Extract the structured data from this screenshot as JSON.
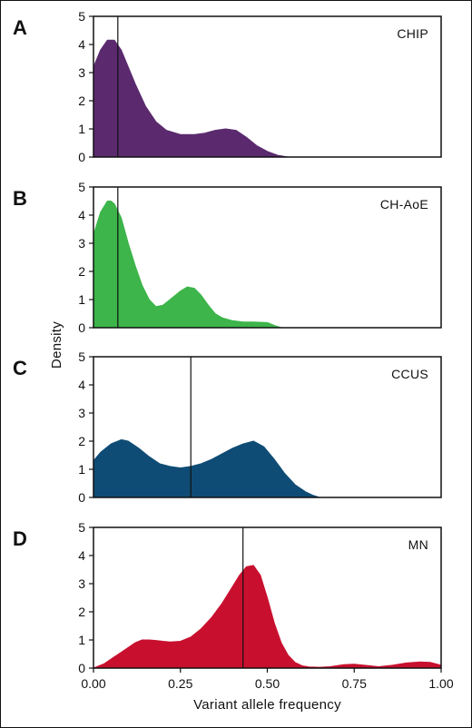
{
  "chart_data": {
    "type": "area",
    "xlabel": "Variant allele frequency",
    "ylabel": "Density",
    "xlim": [
      0,
      1
    ],
    "ylim": [
      0,
      5
    ],
    "x_ticks": [
      "0.00",
      "0.25",
      "0.50",
      "0.75",
      "1.00"
    ],
    "y_ticks": [
      "0",
      "1",
      "2",
      "3",
      "4",
      "5"
    ],
    "grid": false,
    "panels": [
      {
        "letter": "A",
        "label": "CHIP",
        "color": "#5b2a6e",
        "median_vaf": 0.07,
        "x": [
          0,
          0.02,
          0.04,
          0.06,
          0.08,
          0.1,
          0.12,
          0.15,
          0.18,
          0.21,
          0.25,
          0.29,
          0.32,
          0.35,
          0.38,
          0.41,
          0.44,
          0.47,
          0.5,
          0.53,
          0.56
        ],
        "y": [
          3.2,
          3.8,
          4.15,
          4.15,
          3.8,
          3.2,
          2.6,
          1.8,
          1.25,
          0.95,
          0.8,
          0.8,
          0.85,
          0.95,
          1.0,
          0.95,
          0.7,
          0.4,
          0.2,
          0.06,
          0
        ]
      },
      {
        "letter": "B",
        "label": "CH-AoE",
        "color": "#3db54a",
        "median_vaf": 0.07,
        "x": [
          0,
          0.02,
          0.04,
          0.05,
          0.06,
          0.08,
          0.1,
          0.12,
          0.14,
          0.16,
          0.18,
          0.2,
          0.22,
          0.25,
          0.27,
          0.29,
          0.31,
          0.33,
          0.35,
          0.37,
          0.4,
          0.43,
          0.46,
          0.5,
          0.52,
          0.54
        ],
        "y": [
          3.3,
          4.1,
          4.5,
          4.5,
          4.4,
          3.9,
          3.0,
          2.2,
          1.5,
          1.0,
          0.75,
          0.8,
          1.0,
          1.3,
          1.45,
          1.4,
          1.15,
          0.8,
          0.5,
          0.35,
          0.25,
          0.2,
          0.2,
          0.18,
          0.08,
          0
        ]
      },
      {
        "letter": "C",
        "label": "CCUS",
        "color": "#0f4c75",
        "median_vaf": 0.28,
        "x": [
          0,
          0.02,
          0.05,
          0.08,
          0.1,
          0.13,
          0.16,
          0.19,
          0.22,
          0.25,
          0.28,
          0.31,
          0.34,
          0.37,
          0.4,
          0.43,
          0.46,
          0.49,
          0.52,
          0.55,
          0.58,
          0.61,
          0.63,
          0.65
        ],
        "y": [
          1.3,
          1.6,
          1.9,
          2.05,
          2.0,
          1.75,
          1.45,
          1.2,
          1.1,
          1.05,
          1.1,
          1.2,
          1.35,
          1.55,
          1.75,
          1.9,
          2.0,
          1.8,
          1.35,
          0.85,
          0.45,
          0.2,
          0.08,
          0
        ]
      },
      {
        "letter": "D",
        "label": "MN",
        "color": "#c8102e",
        "median_vaf": 0.43,
        "x": [
          0,
          0.03,
          0.06,
          0.09,
          0.12,
          0.14,
          0.16,
          0.18,
          0.2,
          0.22,
          0.25,
          0.28,
          0.31,
          0.34,
          0.37,
          0.4,
          0.42,
          0.44,
          0.46,
          0.48,
          0.5,
          0.52,
          0.54,
          0.56,
          0.58,
          0.6,
          0.62,
          0.65,
          0.68,
          0.72,
          0.75,
          0.78,
          0.82,
          0.86,
          0.9,
          0.94,
          0.97,
          1.0
        ],
        "y": [
          0,
          0.15,
          0.4,
          0.65,
          0.9,
          1.0,
          1.0,
          0.98,
          0.95,
          0.93,
          0.95,
          1.1,
          1.4,
          1.8,
          2.3,
          2.9,
          3.3,
          3.6,
          3.65,
          3.3,
          2.5,
          1.6,
          0.9,
          0.45,
          0.2,
          0.08,
          0.04,
          0.03,
          0.05,
          0.12,
          0.14,
          0.1,
          0.05,
          0.1,
          0.18,
          0.22,
          0.2,
          0.1
        ]
      }
    ]
  }
}
